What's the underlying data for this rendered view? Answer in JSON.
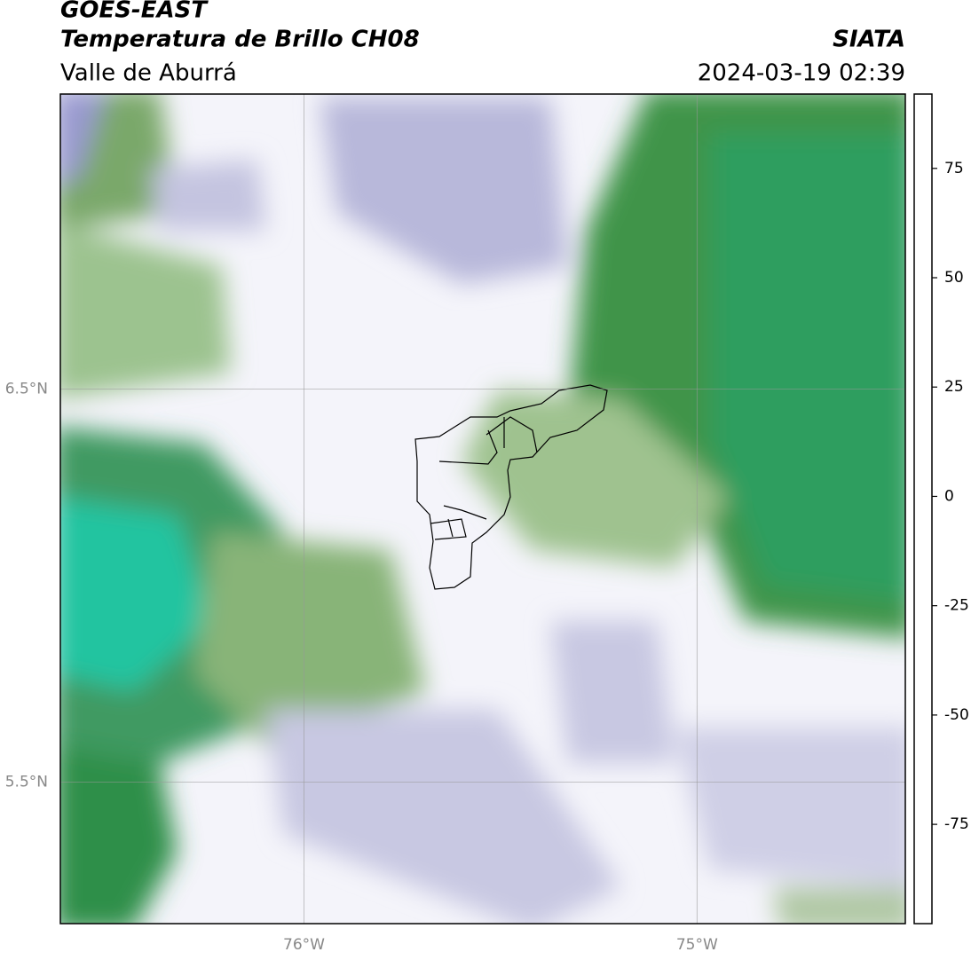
{
  "header": {
    "title": "GOES-EAST",
    "subtitle": "Temperatura de Brillo CH08",
    "region": "Valle de Aburrá",
    "source": "SIATA",
    "datetime": "2024-03-19 02:39"
  },
  "map": {
    "xlim": [
      -76.62,
      -74.47
    ],
    "ylim": [
      5.14,
      7.25
    ],
    "xticks": [
      {
        "value": -76,
        "label": "76°W"
      },
      {
        "value": -75,
        "label": "75°W"
      }
    ],
    "yticks": [
      {
        "value": 6.5,
        "label": "6.5°N"
      },
      {
        "value": 5.5,
        "label": "5.5°N"
      }
    ],
    "grid": true
  },
  "colorbar": {
    "lim": [
      -97.7,
      92
    ],
    "ticks": [
      75,
      50,
      25,
      0,
      -25,
      -50,
      -75
    ],
    "stops": [
      {
        "value": -97.7,
        "color": "#ffffff"
      },
      {
        "value": -93.1,
        "color": "#ffffff"
      },
      {
        "value": -93,
        "color": "#00e5d8"
      },
      {
        "value": -85,
        "color": "#1fc4a0"
      },
      {
        "value": -75,
        "color": "#2e9e5e"
      },
      {
        "value": -65,
        "color": "#3d8a30"
      },
      {
        "value": -60,
        "color": "#5a9e48"
      },
      {
        "value": -55,
        "color": "#c7dcc0"
      },
      {
        "value": -50,
        "color": "#ffffff"
      },
      {
        "value": -45,
        "color": "#d8d8ea"
      },
      {
        "value": -35,
        "color": "#8f8fc4"
      },
      {
        "value": -30,
        "color": "#3a3a96"
      },
      {
        "value": -27,
        "color": "#00006e"
      },
      {
        "value": -24,
        "color": "#2a2a70"
      },
      {
        "value": -20,
        "color": "#7a7a30"
      },
      {
        "value": -15,
        "color": "#c9c900"
      },
      {
        "value": -10,
        "color": "#ffee00"
      },
      {
        "value": -5,
        "color": "#ffa000"
      },
      {
        "value": 0,
        "color": "#ff7000"
      },
      {
        "value": 8,
        "color": "#ff1000"
      },
      {
        "value": 8.1,
        "color": "#000000"
      },
      {
        "value": 92,
        "color": "#000000"
      }
    ]
  }
}
